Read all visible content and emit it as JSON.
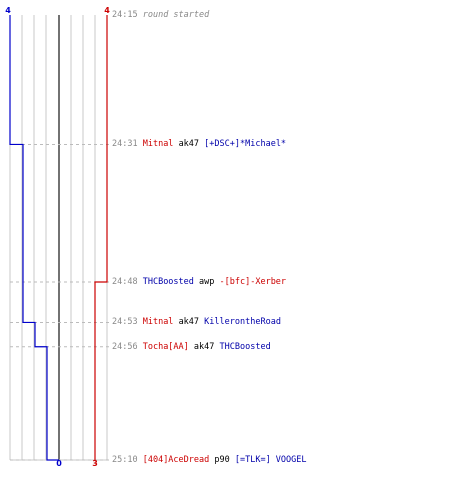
{
  "scoreboard": {
    "blue_start": "4",
    "red_start": "4",
    "blue_end": "0",
    "red_end": "3"
  },
  "colors": {
    "team_blue": "#0000cc",
    "team_red": "#cc0000",
    "grid": "#c8c8c8",
    "center_line": "#444444",
    "timestamp": "#888888",
    "dashed_guide": "#bbbbbb"
  },
  "events": [
    {
      "time": "24:15",
      "type": "system",
      "text": "round started"
    },
    {
      "time": "24:31",
      "type": "kill",
      "killer": "Mitnal",
      "killer_team": "red",
      "weapon": "ak47",
      "victim": "[+DSC+]*Michael*",
      "victim_team": "blue"
    },
    {
      "time": "24:48",
      "type": "kill",
      "killer": "THCBoosted",
      "killer_team": "blue",
      "weapon": "awp",
      "victim": "-[bfc]-Xerber",
      "victim_team": "red"
    },
    {
      "time": "24:53",
      "type": "kill",
      "killer": "Mitnal",
      "killer_team": "red",
      "weapon": "ak47",
      "victim": "KillerontheRoad",
      "victim_team": "blue"
    },
    {
      "time": "24:56",
      "type": "kill",
      "killer": "Tocha[AA]",
      "killer_team": "red",
      "weapon": "ak47",
      "victim": "THCBoosted",
      "victim_team": "blue"
    },
    {
      "time": "25:10",
      "type": "kill",
      "killer": "[404]AceDread",
      "killer_team": "red",
      "weapon": "p90",
      "victim": "[=TLK=] VOOGEL",
      "victim_team": "blue"
    }
  ],
  "alive_counts": {
    "blue": [
      4,
      3,
      3,
      2,
      1,
      0
    ],
    "red": [
      4,
      4,
      3,
      3,
      3,
      3
    ]
  }
}
